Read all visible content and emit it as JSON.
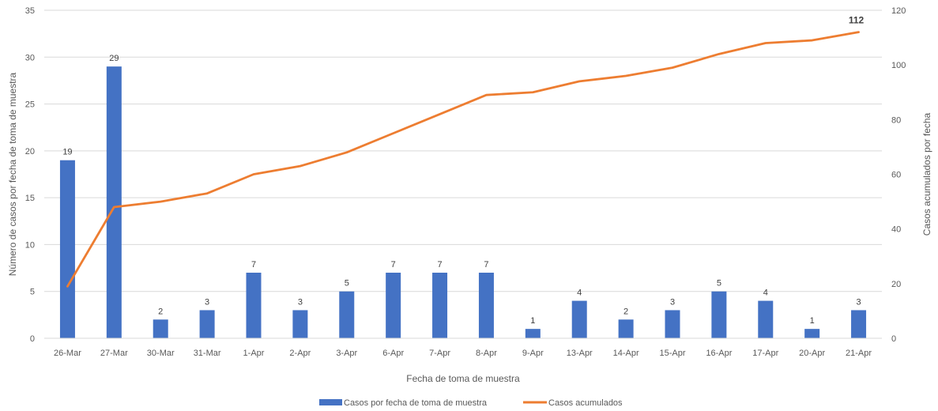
{
  "chart_data": {
    "type": "bar+line",
    "categories": [
      "26-Mar",
      "27-Mar",
      "30-Mar",
      "31-Mar",
      "1-Apr",
      "2-Apr",
      "3-Apr",
      "6-Apr",
      "7-Apr",
      "8-Apr",
      "9-Apr",
      "13-Apr",
      "14-Apr",
      "15-Apr",
      "16-Apr",
      "17-Apr",
      "20-Apr",
      "21-Apr"
    ],
    "series": [
      {
        "name": "Casos por fecha de toma de muestra",
        "type": "bar",
        "axis": "left",
        "color": "#4472C4",
        "values": [
          19,
          29,
          2,
          3,
          7,
          3,
          5,
          7,
          7,
          7,
          1,
          4,
          2,
          3,
          5,
          4,
          1,
          3
        ]
      },
      {
        "name": "Casos acumulados",
        "type": "line",
        "axis": "right",
        "color": "#ED7D31",
        "values": [
          19,
          48,
          50,
          53,
          60,
          63,
          68,
          75,
          82,
          89,
          90,
          94,
          96,
          99,
          104,
          108,
          109,
          112
        ]
      }
    ],
    "data_labels": [
      "19",
      "29",
      "2",
      "3",
      "7",
      "3",
      "5",
      "7",
      "7",
      "7",
      "1",
      "4",
      "2",
      "3",
      "5",
      "4",
      "1",
      "3"
    ],
    "line_end_label": "112",
    "xlabel": "Fecha de toma de muestra",
    "ylabel": "Número de casos por fecha de toma de muestra",
    "y2label": "Casos acumulados por fecha",
    "ylim": [
      0,
      35
    ],
    "yticks": [
      0,
      5,
      10,
      15,
      20,
      25,
      30,
      35
    ],
    "y2lim": [
      0,
      120
    ],
    "y2ticks": [
      0,
      20,
      40,
      60,
      80,
      100,
      120
    ],
    "grid": true,
    "legend_position": "bottom"
  }
}
